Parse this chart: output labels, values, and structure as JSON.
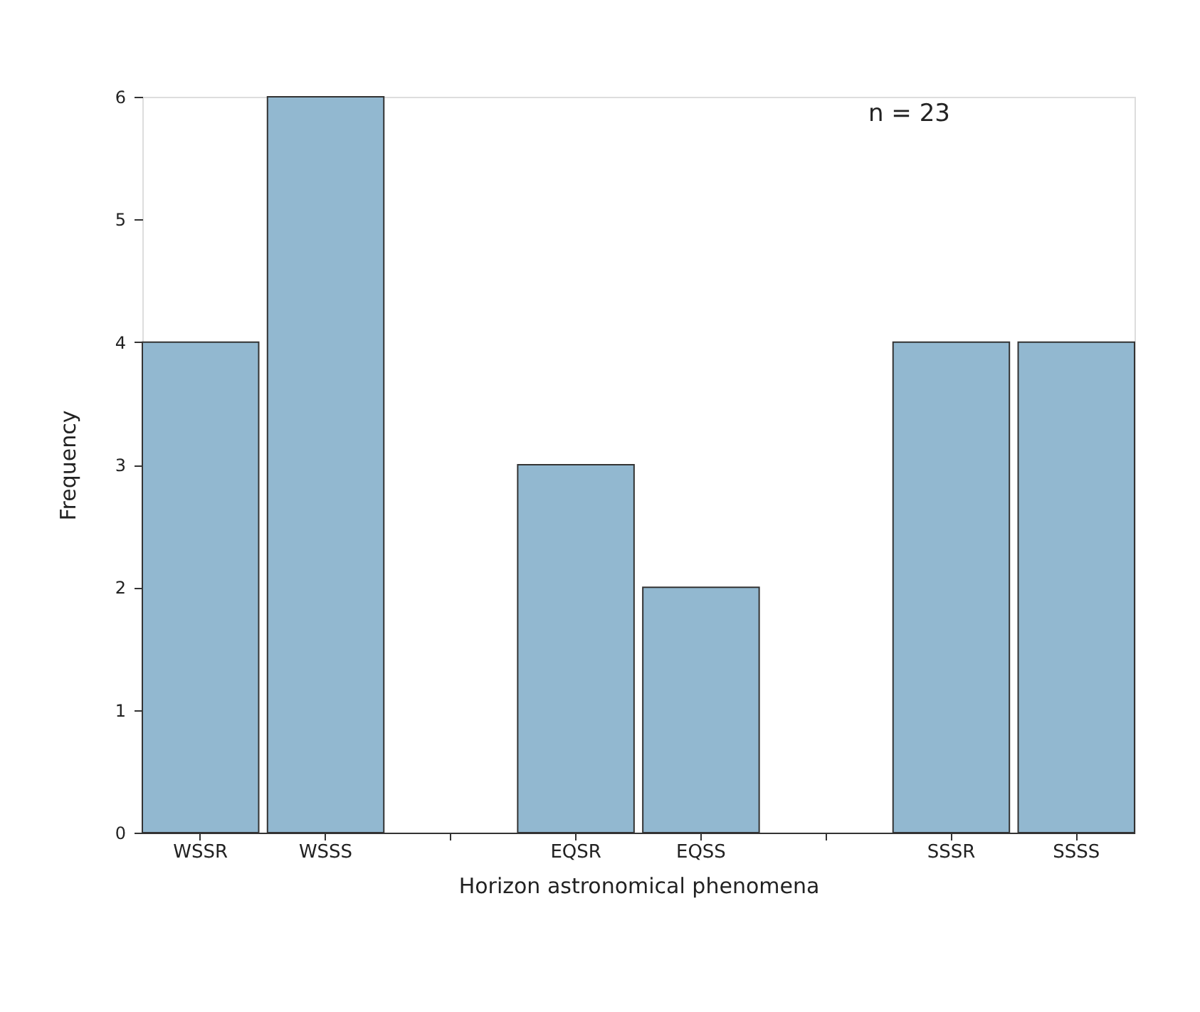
{
  "chart_data": {
    "type": "bar",
    "xlabel": "Horizon astronomical phenomena",
    "ylabel": "Frequency",
    "categories": [
      "WSSR",
      "WSSS",
      null,
      "EQSR",
      "EQSS",
      null,
      "SSSR",
      "SSSS"
    ],
    "values": [
      4,
      6,
      null,
      3,
      2,
      null,
      4,
      4
    ],
    "color": "#92b8d0",
    "ylim": [
      0,
      6
    ],
    "yticks": [
      0,
      1,
      2,
      3,
      4,
      5,
      6
    ],
    "grid": false,
    "annotations": [
      "n = 23"
    ]
  }
}
